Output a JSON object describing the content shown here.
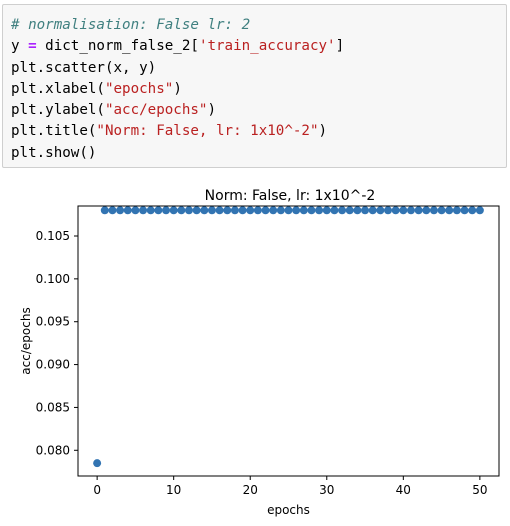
{
  "cell": {
    "lines": [
      [
        {
          "t": "# normalisation: False lr: 2",
          "k": "comment"
        }
      ],
      [
        {
          "t": "y ",
          "k": "plain"
        },
        {
          "t": "=",
          "k": "op"
        },
        {
          "t": " dict_norm_false_2[",
          "k": "plain"
        },
        {
          "t": "'train_accuracy'",
          "k": "str"
        },
        {
          "t": "]",
          "k": "plain"
        }
      ],
      [
        {
          "t": "plt.scatter(x, y)",
          "k": "plain"
        }
      ],
      [
        {
          "t": "plt.xlabel(",
          "k": "plain"
        },
        {
          "t": "\"epochs\"",
          "k": "str"
        },
        {
          "t": ")",
          "k": "plain"
        }
      ],
      [
        {
          "t": "plt.ylabel(",
          "k": "plain"
        },
        {
          "t": "\"acc/epochs\"",
          "k": "str"
        },
        {
          "t": ")",
          "k": "plain"
        }
      ],
      [
        {
          "t": "plt.title(",
          "k": "plain"
        },
        {
          "t": "\"Norm: False, lr: 1x10^-2\"",
          "k": "str"
        },
        {
          "t": ")",
          "k": "plain"
        }
      ],
      [
        {
          "t": "plt.show()",
          "k": "plain"
        }
      ]
    ]
  },
  "chart_data": {
    "type": "scatter",
    "title": "Norm: False, lr: 1x10^-2",
    "xlabel": "epochs",
    "ylabel": "acc/epochs",
    "xlim": [
      -2.5,
      52.5
    ],
    "ylim": [
      0.077,
      0.1085
    ],
    "xticks": [
      0,
      10,
      20,
      30,
      40,
      50
    ],
    "xtick_labels": [
      "0",
      "10",
      "20",
      "30",
      "40",
      "50"
    ],
    "yticks": [
      0.08,
      0.085,
      0.09,
      0.095,
      0.1,
      0.105
    ],
    "ytick_labels": [
      "0.080",
      "0.085",
      "0.090",
      "0.095",
      "0.100",
      "0.105"
    ],
    "grid": false,
    "marker_color": "#3274b2",
    "x": [
      0,
      1,
      2,
      3,
      4,
      5,
      6,
      7,
      8,
      9,
      10,
      11,
      12,
      13,
      14,
      15,
      16,
      17,
      18,
      19,
      20,
      21,
      22,
      23,
      24,
      25,
      26,
      27,
      28,
      29,
      30,
      31,
      32,
      33,
      34,
      35,
      36,
      37,
      38,
      39,
      40,
      41,
      42,
      43,
      44,
      45,
      46,
      47,
      48,
      49,
      50
    ],
    "y": [
      0.0785,
      0.108,
      0.108,
      0.108,
      0.108,
      0.108,
      0.108,
      0.108,
      0.108,
      0.108,
      0.108,
      0.108,
      0.108,
      0.108,
      0.108,
      0.108,
      0.108,
      0.108,
      0.108,
      0.108,
      0.108,
      0.108,
      0.108,
      0.108,
      0.108,
      0.108,
      0.108,
      0.108,
      0.108,
      0.108,
      0.108,
      0.108,
      0.108,
      0.108,
      0.108,
      0.108,
      0.108,
      0.108,
      0.108,
      0.108,
      0.108,
      0.108,
      0.108,
      0.108,
      0.108,
      0.108,
      0.108,
      0.108,
      0.108,
      0.108,
      0.108
    ]
  }
}
